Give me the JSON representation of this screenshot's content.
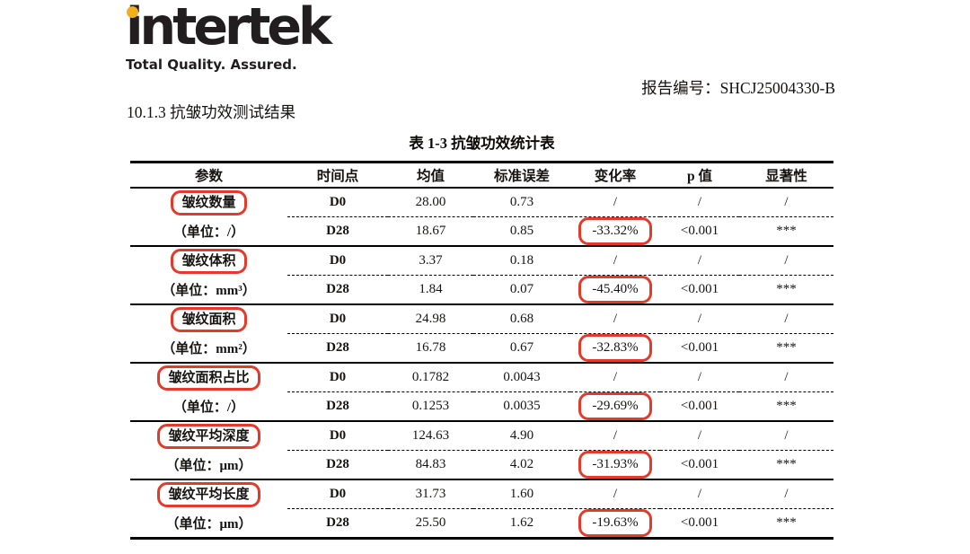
{
  "brand": {
    "logo_text": "intertek",
    "tagline": "Total Quality. Assured.",
    "logo_color": "#221e1f",
    "dot_color": "#f0b01c"
  },
  "report": {
    "report_no_line": "报告编号：SHCJ25004330-B",
    "section_heading": "10.1.3 抗皱功效测试结果",
    "table_caption": "表 1-3 抗皱功效统计表"
  },
  "colors": {
    "highlight_red": "#e23b2b",
    "text": "#161412"
  },
  "table": {
    "headers": [
      "参数",
      "时间点",
      "均值",
      "标准误差",
      "变化率",
      "p 值",
      "显著性"
    ],
    "groups": [
      {
        "param": "皱纹数量",
        "unit": "（单位：/）",
        "d0": {
          "time": "D0",
          "mean": "28.00",
          "se": "0.73",
          "change": "/",
          "p": "/",
          "sig": "/"
        },
        "d28": {
          "time": "D28",
          "mean": "18.67",
          "se": "0.85",
          "change": "-33.32%",
          "p": "<0.001",
          "sig": "***"
        }
      },
      {
        "param": "皱纹体积",
        "unit": "（单位：mm³）",
        "d0": {
          "time": "D0",
          "mean": "3.37",
          "se": "0.18",
          "change": "/",
          "p": "/",
          "sig": "/"
        },
        "d28": {
          "time": "D28",
          "mean": "1.84",
          "se": "0.07",
          "change": "-45.40%",
          "p": "<0.001",
          "sig": "***"
        }
      },
      {
        "param": "皱纹面积",
        "unit": "（单位：mm²）",
        "d0": {
          "time": "D0",
          "mean": "24.98",
          "se": "0.68",
          "change": "/",
          "p": "/",
          "sig": "/"
        },
        "d28": {
          "time": "D28",
          "mean": "16.78",
          "se": "0.67",
          "change": "-32.83%",
          "p": "<0.001",
          "sig": "***"
        }
      },
      {
        "param": "皱纹面积占比",
        "unit": "（单位：/）",
        "d0": {
          "time": "D0",
          "mean": "0.1782",
          "se": "0.0043",
          "change": "/",
          "p": "/",
          "sig": "/"
        },
        "d28": {
          "time": "D28",
          "mean": "0.1253",
          "se": "0.0035",
          "change": "-29.69%",
          "p": "<0.001",
          "sig": "***"
        }
      },
      {
        "param": "皱纹平均深度",
        "unit": "（单位：μm）",
        "d0": {
          "time": "D0",
          "mean": "124.63",
          "se": "4.90",
          "change": "/",
          "p": "/",
          "sig": "/"
        },
        "d28": {
          "time": "D28",
          "mean": "84.83",
          "se": "4.02",
          "change": "-31.93%",
          "p": "<0.001",
          "sig": "***"
        }
      },
      {
        "param": "皱纹平均长度",
        "unit": "（单位：μm）",
        "d0": {
          "time": "D0",
          "mean": "31.73",
          "se": "1.60",
          "change": "/",
          "p": "/",
          "sig": "/"
        },
        "d28": {
          "time": "D28",
          "mean": "25.50",
          "se": "1.62",
          "change": "-19.63%",
          "p": "<0.001",
          "sig": "***"
        }
      }
    ]
  }
}
